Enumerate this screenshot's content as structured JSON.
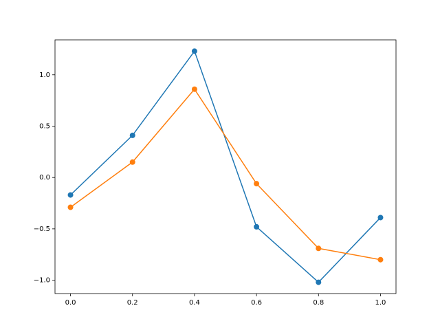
{
  "chart_data": {
    "type": "line",
    "x": [
      0.0,
      0.2,
      0.4,
      0.6,
      0.8,
      1.0
    ],
    "series": [
      {
        "color": "#1f77b4",
        "values": [
          -0.17,
          0.41,
          1.23,
          -0.48,
          -1.02,
          -0.39
        ]
      },
      {
        "color": "#ff7f0e",
        "values": [
          -0.29,
          0.15,
          0.86,
          -0.06,
          -0.69,
          -0.8
        ]
      }
    ],
    "xlim": [
      -0.05,
      1.05
    ],
    "ylim": [
      -1.13,
      1.34
    ],
    "xticks": [
      {
        "value": 0,
        "label": "0.0"
      },
      0.2,
      0.4,
      0.6,
      0.8,
      {
        "value": 1,
        "label": "1.0"
      }
    ],
    "yticks": [
      {
        "value": -1,
        "label": "−1.0"
      },
      {
        "value": -0.5,
        "label": "−0.5"
      },
      {
        "value": 0,
        "label": "0.0"
      },
      0.5,
      {
        "value": 1,
        "label": "1.0"
      }
    ],
    "markers": true,
    "grid": false
  }
}
